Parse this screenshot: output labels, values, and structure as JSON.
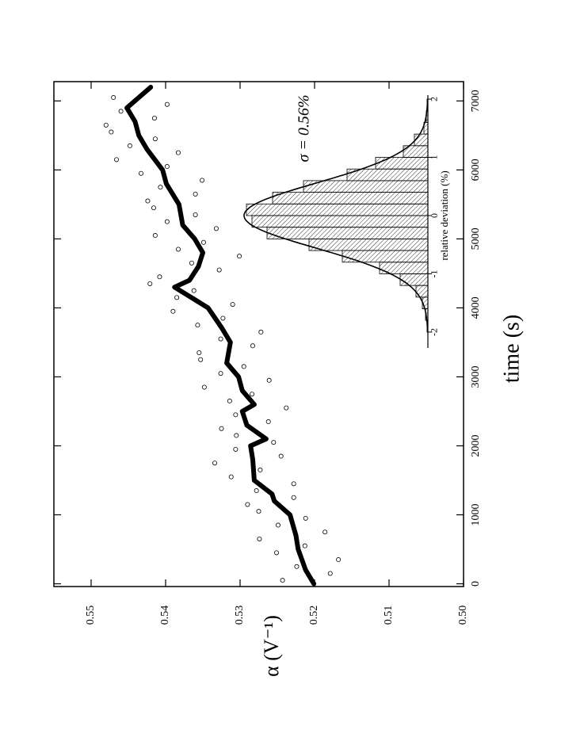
{
  "chart_data": [
    {
      "type": "scatter",
      "xlabel": "time (s)",
      "ylabel": "α (V⁻¹)",
      "xlim": [
        -40,
        7280
      ],
      "ylim": [
        0.5,
        0.555
      ],
      "xticks": [
        0,
        1000,
        2000,
        3000,
        4000,
        5000,
        6000,
        7000
      ],
      "yticks": [
        {
          "value": 0.5,
          "label": "0.50"
        },
        0.51,
        0.52,
        0.53,
        0.54,
        0.55
      ],
      "points": {
        "x": [
          50,
          150,
          250,
          350,
          450,
          550,
          650,
          750,
          850,
          950,
          1050,
          1150,
          1250,
          1350,
          1450,
          1550,
          1650,
          1750,
          1850,
          1950,
          2050,
          2150,
          2250,
          2350,
          2450,
          2550,
          2650,
          2750,
          2850,
          2950,
          3050,
          3150,
          3250,
          3350,
          3450,
          3550,
          3650,
          3750,
          3850,
          3950,
          4050,
          4150,
          4250,
          4350,
          4450,
          4550,
          4650,
          4750,
          4850,
          4950,
          5050,
          5150,
          5250,
          5350,
          5450,
          5550,
          5650,
          5750,
          5850,
          5950,
          6050,
          6150,
          6250,
          6350,
          6450,
          6550,
          6650,
          6750,
          6850,
          6950,
          7050
        ],
        "values": [
          0.5243,
          0.5179,
          0.5224,
          0.5168,
          0.5251,
          0.5213,
          0.5274,
          0.5186,
          0.5249,
          0.5212,
          0.5275,
          0.529,
          0.5228,
          0.5278,
          0.5228,
          0.5312,
          0.5273,
          0.5334,
          0.5245,
          0.5306,
          0.5255,
          0.5305,
          0.5325,
          0.5262,
          0.5306,
          0.5238,
          0.5314,
          0.5284,
          0.5348,
          0.5261,
          0.5326,
          0.5295,
          0.5353,
          0.5355,
          0.5283,
          0.5326,
          0.5272,
          0.5357,
          0.5323,
          0.539,
          0.531,
          0.5385,
          0.5362,
          0.5421,
          0.5408,
          0.5328,
          0.5365,
          0.5301,
          0.5383,
          0.5349,
          0.5414,
          0.5332,
          0.5398,
          0.536,
          0.5416,
          0.5424,
          0.536,
          0.5407,
          0.5351,
          0.5433,
          0.5398,
          0.5466,
          0.5383,
          0.5448,
          0.5414,
          0.5473,
          0.548,
          0.5415,
          0.546,
          0.5398,
          0.547
        ]
      },
      "line": {
        "x": [
          0,
          200,
          500,
          700,
          1000,
          1200,
          1300,
          1500,
          1800,
          2000,
          2100,
          2300,
          2500,
          2600,
          2800,
          3000,
          3200,
          3500,
          3700,
          4000,
          4300,
          4400,
          4600,
          4800,
          5000,
          5200,
          5500,
          5800,
          6000,
          6300,
          6500,
          6700,
          6900,
          7200
        ],
        "values": [
          0.5201,
          0.5212,
          0.5222,
          0.5225,
          0.5233,
          0.5254,
          0.5257,
          0.5281,
          0.5283,
          0.5286,
          0.5265,
          0.5291,
          0.5297,
          0.5281,
          0.5297,
          0.5302,
          0.5318,
          0.5313,
          0.5324,
          0.5343,
          0.5388,
          0.5368,
          0.5356,
          0.535,
          0.5361,
          0.5377,
          0.5382,
          0.5399,
          0.5404,
          0.5425,
          0.5436,
          0.5441,
          0.5452,
          0.542
        ]
      }
    },
    {
      "type": "histogram",
      "xlabel": "relative deviation (%)",
      "annotation": "σ = 0.56%",
      "xlim": [
        -2.3,
        2.3
      ],
      "ylim": [
        0,
        240
      ],
      "xticks": [
        -2,
        -1,
        0,
        1,
        2
      ],
      "bins": [
        -2.0,
        -1.8,
        -1.6,
        -1.4,
        -1.2,
        -1.0,
        -0.8,
        -0.6,
        -0.4,
        -0.2,
        0.0,
        0.2,
        0.4,
        0.6,
        0.8,
        1.0,
        1.2,
        1.4,
        1.6,
        1.8,
        2.0
      ],
      "counts": [
        1,
        3,
        7,
        15,
        35,
        61,
        108,
        150,
        203,
        222,
        229,
        196,
        157,
        102,
        66,
        31,
        17,
        5,
        2,
        1
      ],
      "fit": {
        "sigma": 0.56,
        "amplitude": 232
      }
    }
  ]
}
